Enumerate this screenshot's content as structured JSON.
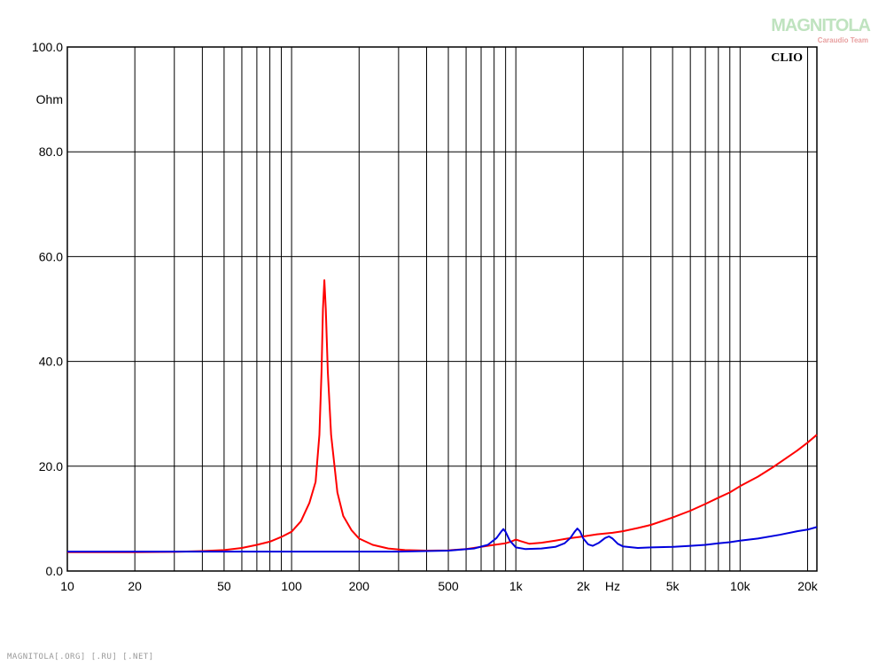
{
  "watermark": {
    "logo_text": "MAGNITOLA",
    "sub_text": "Caraudio Team"
  },
  "footer_text": "MAGNITOLA[.ORG] [.RU] [.NET]",
  "chart_data": {
    "type": "line",
    "brand_label": "CLIO",
    "y_unit": "Ohm",
    "x_unit": "Hz",
    "x_scale": "log",
    "xlim": [
      10,
      22000
    ],
    "ylim": [
      0,
      100
    ],
    "grid": true,
    "x_ticks": [
      {
        "value": 10,
        "label": "10"
      },
      {
        "value": 20,
        "label": "20"
      },
      {
        "value": 50,
        "label": "50"
      },
      {
        "value": 100,
        "label": "100"
      },
      {
        "value": 200,
        "label": "200"
      },
      {
        "value": 500,
        "label": "500"
      },
      {
        "value": 1000,
        "label": "1k"
      },
      {
        "value": 2000,
        "label": "2k"
      },
      {
        "value": 5000,
        "label": "5k"
      },
      {
        "value": 10000,
        "label": "10k"
      },
      {
        "value": 20000,
        "label": "20k"
      }
    ],
    "y_ticks": [
      {
        "value": 0,
        "label": "0.0"
      },
      {
        "value": 20,
        "label": "20.0"
      },
      {
        "value": 40,
        "label": "40.0"
      },
      {
        "value": 60,
        "label": "60.0"
      },
      {
        "value": 80,
        "label": "80.0"
      },
      {
        "value": 100,
        "label": "100.0"
      }
    ],
    "series": [
      {
        "color": "#ff0000",
        "points": [
          [
            10,
            3.6
          ],
          [
            20,
            3.6
          ],
          [
            30,
            3.65
          ],
          [
            40,
            3.8
          ],
          [
            50,
            4.0
          ],
          [
            60,
            4.4
          ],
          [
            70,
            5.0
          ],
          [
            80,
            5.6
          ],
          [
            90,
            6.5
          ],
          [
            100,
            7.5
          ],
          [
            110,
            9.5
          ],
          [
            120,
            13.0
          ],
          [
            128,
            17.0
          ],
          [
            133,
            26.0
          ],
          [
            136,
            38.0
          ],
          [
            138,
            50.0
          ],
          [
            140,
            55.5
          ],
          [
            142,
            50.0
          ],
          [
            145,
            38.0
          ],
          [
            150,
            26.0
          ],
          [
            160,
            15.0
          ],
          [
            170,
            10.5
          ],
          [
            185,
            7.8
          ],
          [
            200,
            6.2
          ],
          [
            230,
            5.0
          ],
          [
            270,
            4.3
          ],
          [
            320,
            4.0
          ],
          [
            400,
            3.9
          ],
          [
            500,
            3.95
          ],
          [
            600,
            4.2
          ],
          [
            700,
            4.6
          ],
          [
            800,
            5.0
          ],
          [
            900,
            5.3
          ],
          [
            950,
            5.6
          ],
          [
            1000,
            6.0
          ],
          [
            1050,
            5.7
          ],
          [
            1150,
            5.2
          ],
          [
            1300,
            5.4
          ],
          [
            1500,
            5.8
          ],
          [
            1700,
            6.2
          ],
          [
            2000,
            6.6
          ],
          [
            2300,
            7.0
          ],
          [
            2700,
            7.3
          ],
          [
            3000,
            7.6
          ],
          [
            3500,
            8.2
          ],
          [
            4000,
            8.8
          ],
          [
            5000,
            10.2
          ],
          [
            6000,
            11.5
          ],
          [
            7000,
            12.8
          ],
          [
            8000,
            14.0
          ],
          [
            9000,
            15.0
          ],
          [
            10000,
            16.2
          ],
          [
            12000,
            18.0
          ],
          [
            14000,
            19.8
          ],
          [
            16000,
            21.5
          ],
          [
            18000,
            23.0
          ],
          [
            20000,
            24.5
          ],
          [
            22000,
            26.0
          ]
        ]
      },
      {
        "color": "#0000dd",
        "points": [
          [
            10,
            3.7
          ],
          [
            30,
            3.7
          ],
          [
            100,
            3.7
          ],
          [
            300,
            3.7
          ],
          [
            500,
            3.9
          ],
          [
            650,
            4.3
          ],
          [
            750,
            5.0
          ],
          [
            820,
            6.3
          ],
          [
            860,
            7.5
          ],
          [
            880,
            8.0
          ],
          [
            900,
            7.5
          ],
          [
            940,
            5.8
          ],
          [
            1000,
            4.5
          ],
          [
            1100,
            4.2
          ],
          [
            1300,
            4.3
          ],
          [
            1500,
            4.6
          ],
          [
            1650,
            5.3
          ],
          [
            1750,
            6.3
          ],
          [
            1830,
            7.5
          ],
          [
            1880,
            8.1
          ],
          [
            1930,
            7.6
          ],
          [
            2000,
            6.2
          ],
          [
            2100,
            5.1
          ],
          [
            2200,
            4.8
          ],
          [
            2350,
            5.4
          ],
          [
            2500,
            6.3
          ],
          [
            2600,
            6.6
          ],
          [
            2700,
            6.2
          ],
          [
            2850,
            5.2
          ],
          [
            3000,
            4.7
          ],
          [
            3500,
            4.4
          ],
          [
            4000,
            4.5
          ],
          [
            5000,
            4.6
          ],
          [
            6000,
            4.8
          ],
          [
            7000,
            5.0
          ],
          [
            8000,
            5.3
          ],
          [
            9000,
            5.5
          ],
          [
            10000,
            5.8
          ],
          [
            12000,
            6.2
          ],
          [
            15000,
            6.9
          ],
          [
            18000,
            7.6
          ],
          [
            20000,
            7.9
          ],
          [
            22000,
            8.4
          ]
        ]
      }
    ]
  }
}
